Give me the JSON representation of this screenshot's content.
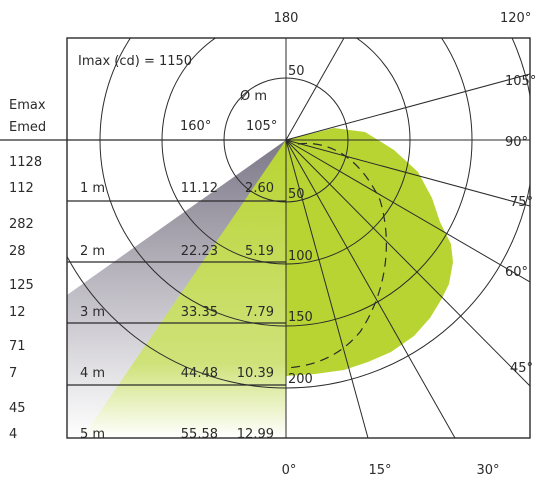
{
  "header": {
    "imax_label": "Imax (cd) = 1150",
    "diameter_label": "Ø m",
    "col_160": "160°",
    "col_105": "105°",
    "emax": "Emax",
    "emed": "Emed"
  },
  "rows": [
    {
      "emax": "1128",
      "emed": "112",
      "distance": "1 m",
      "d160": "11.12",
      "d105": "2.60"
    },
    {
      "emax": "282",
      "emed": "28",
      "distance": "2 m",
      "d160": "22.23",
      "d105": "5.19"
    },
    {
      "emax": "125",
      "emed": "12",
      "distance": "3 m",
      "d160": "33.35",
      "d105": "7.79"
    },
    {
      "emax": "71",
      "emed": "7",
      "distance": "4 m",
      "d160": "44.48",
      "d105": "10.39"
    },
    {
      "emax": "45",
      "emed": "4",
      "distance": "5 m",
      "d160": "55.58",
      "d105": "12.99"
    }
  ],
  "polar": {
    "top_label": "180",
    "angle_labels": [
      "120°",
      "105°",
      "90°",
      "75°",
      "60°",
      "45°"
    ],
    "bottom_labels": [
      "0°",
      "15°",
      "30°"
    ],
    "radial_labels": [
      "50",
      "50",
      "100",
      "150",
      "200"
    ],
    "lamp_color": "#b8d432",
    "beam_gray": "#8f8a9a"
  }
}
